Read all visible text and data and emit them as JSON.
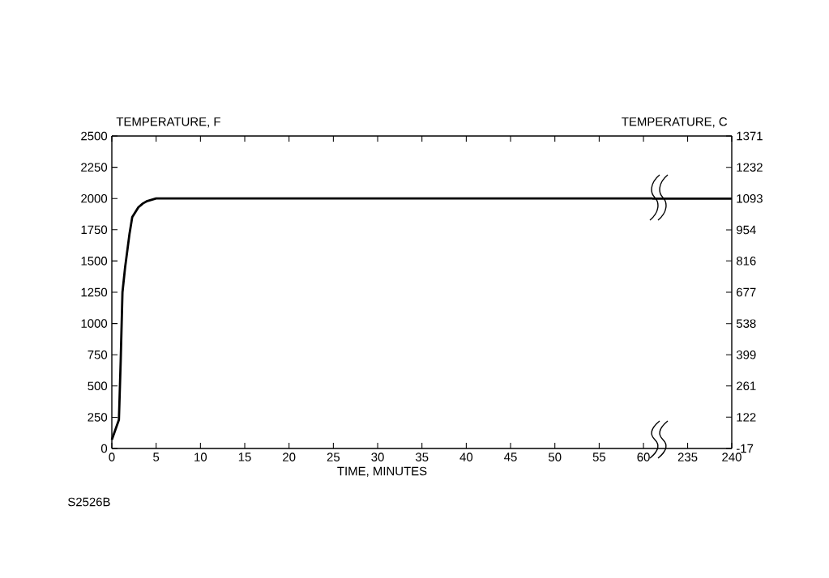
{
  "chart_data": [
    {
      "type": "line",
      "xlabel": "TIME, MINUTES",
      "ylabel": "TEMPERATURE, F",
      "annotations": [
        "S2526B"
      ],
      "series": [
        {
          "color": "#000000",
          "x": [
            0,
            0.8,
            1,
            1.2,
            1.5,
            2,
            2.3,
            3,
            3.5,
            4,
            5,
            10,
            20,
            30,
            40,
            50,
            60,
            61
          ],
          "values": [
            70,
            230,
            700,
            1250,
            1450,
            1720,
            1850,
            1930,
            1960,
            1980,
            2000,
            2000,
            2000,
            2000,
            2000,
            2000,
            2000,
            2000
          ]
        }
      ],
      "xlim": [
        0,
        61
      ],
      "xticks": [
        0,
        5,
        10,
        15,
        20,
        25,
        30,
        35,
        40,
        45,
        50,
        55,
        60
      ],
      "ylim": [
        0,
        2500
      ],
      "yticks": [
        0,
        250,
        500,
        750,
        1000,
        1250,
        1500,
        1750,
        2000,
        2250,
        2500
      ],
      "grid": false,
      "marker": "none",
      "line_style": "solid"
    },
    {
      "type": "line",
      "y2label": "TEMPERATURE, C",
      "series": [
        {
          "color": "#000000",
          "axis": "y2",
          "x": [
            231,
            240
          ],
          "values": [
            1093,
            1093
          ]
        }
      ],
      "xlim": [
        231,
        240
      ],
      "xticks": [
        235,
        240
      ],
      "y2lim": [
        -17,
        1371
      ],
      "y2ticks": [
        -17,
        122,
        261,
        399,
        538,
        677,
        816,
        954,
        1093,
        1232,
        1371
      ],
      "grid": false,
      "marker": "none",
      "line_style": "solid"
    }
  ]
}
